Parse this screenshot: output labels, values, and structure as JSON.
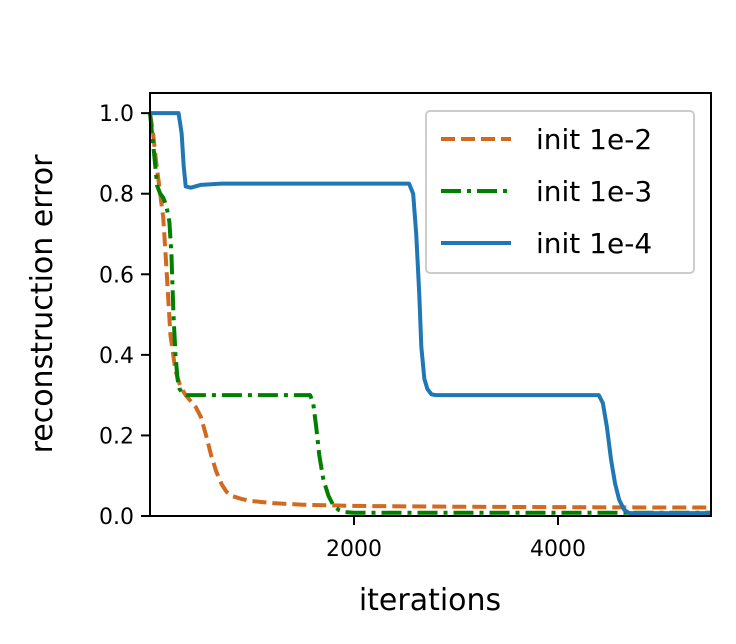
{
  "chart_data": {
    "type": "line",
    "title": "",
    "xlabel": "iterations",
    "ylabel": "reconstruction error",
    "xlim": [
      0,
      5500
    ],
    "ylim": [
      0.0,
      1.05
    ],
    "xticks": [
      2000,
      4000
    ],
    "xtick_labels": [
      "2000",
      "4000"
    ],
    "yticks": [
      0.0,
      0.2,
      0.4,
      0.6,
      0.8,
      1.0
    ],
    "ytick_labels": [
      "0.0",
      "0.2",
      "0.4",
      "0.6",
      "0.8",
      "1.0"
    ],
    "grid": false,
    "legend_position": "top-right",
    "series": [
      {
        "name": "init 1e-2",
        "color": "#d2691e",
        "dash": "dashed",
        "x": [
          0,
          30,
          60,
          100,
          130,
          160,
          200,
          250,
          300,
          350,
          400,
          450,
          500,
          550,
          600,
          650,
          700,
          750,
          800,
          900,
          1000,
          1200,
          1500,
          2000,
          2500,
          3000,
          4000,
          5000,
          5500
        ],
        "y": [
          1.0,
          0.95,
          0.88,
          0.8,
          0.74,
          0.62,
          0.45,
          0.36,
          0.32,
          0.3,
          0.285,
          0.27,
          0.245,
          0.2,
          0.15,
          0.11,
          0.08,
          0.06,
          0.05,
          0.042,
          0.037,
          0.032,
          0.028,
          0.025,
          0.024,
          0.023,
          0.022,
          0.021,
          0.021
        ]
      },
      {
        "name": "init 1e-3",
        "color": "#008000",
        "dash": "dashdot",
        "x": [
          0,
          40,
          70,
          100,
          130,
          160,
          190,
          210,
          230,
          250,
          270,
          290,
          320,
          360,
          400,
          600,
          1000,
          1400,
          1570,
          1600,
          1630,
          1660,
          1700,
          1750,
          1800,
          1850,
          1900,
          2000,
          2500,
          3000,
          4000,
          5000,
          5500
        ],
        "y": [
          1.0,
          0.9,
          0.82,
          0.8,
          0.79,
          0.77,
          0.73,
          0.65,
          0.5,
          0.4,
          0.34,
          0.315,
          0.305,
          0.3,
          0.3,
          0.3,
          0.3,
          0.3,
          0.3,
          0.28,
          0.22,
          0.15,
          0.09,
          0.05,
          0.025,
          0.015,
          0.01,
          0.008,
          0.008,
          0.008,
          0.008,
          0.008,
          0.008
        ]
      },
      {
        "name": "init 1e-4",
        "color": "#1f77b4",
        "dash": "solid",
        "x": [
          0,
          280,
          310,
          330,
          350,
          400,
          500,
          700,
          1000,
          2000,
          2540,
          2580,
          2610,
          2640,
          2660,
          2690,
          2720,
          2760,
          2800,
          3000,
          3500,
          4000,
          4400,
          4440,
          4480,
          4520,
          4560,
          4600,
          4650,
          4700,
          4800,
          5000,
          5500
        ],
        "y": [
          1.0,
          1.0,
          0.95,
          0.87,
          0.818,
          0.815,
          0.822,
          0.825,
          0.825,
          0.825,
          0.825,
          0.8,
          0.7,
          0.55,
          0.42,
          0.34,
          0.315,
          0.302,
          0.3,
          0.3,
          0.3,
          0.3,
          0.3,
          0.28,
          0.22,
          0.14,
          0.08,
          0.04,
          0.015,
          0.007,
          0.007,
          0.007,
          0.007
        ]
      }
    ]
  }
}
